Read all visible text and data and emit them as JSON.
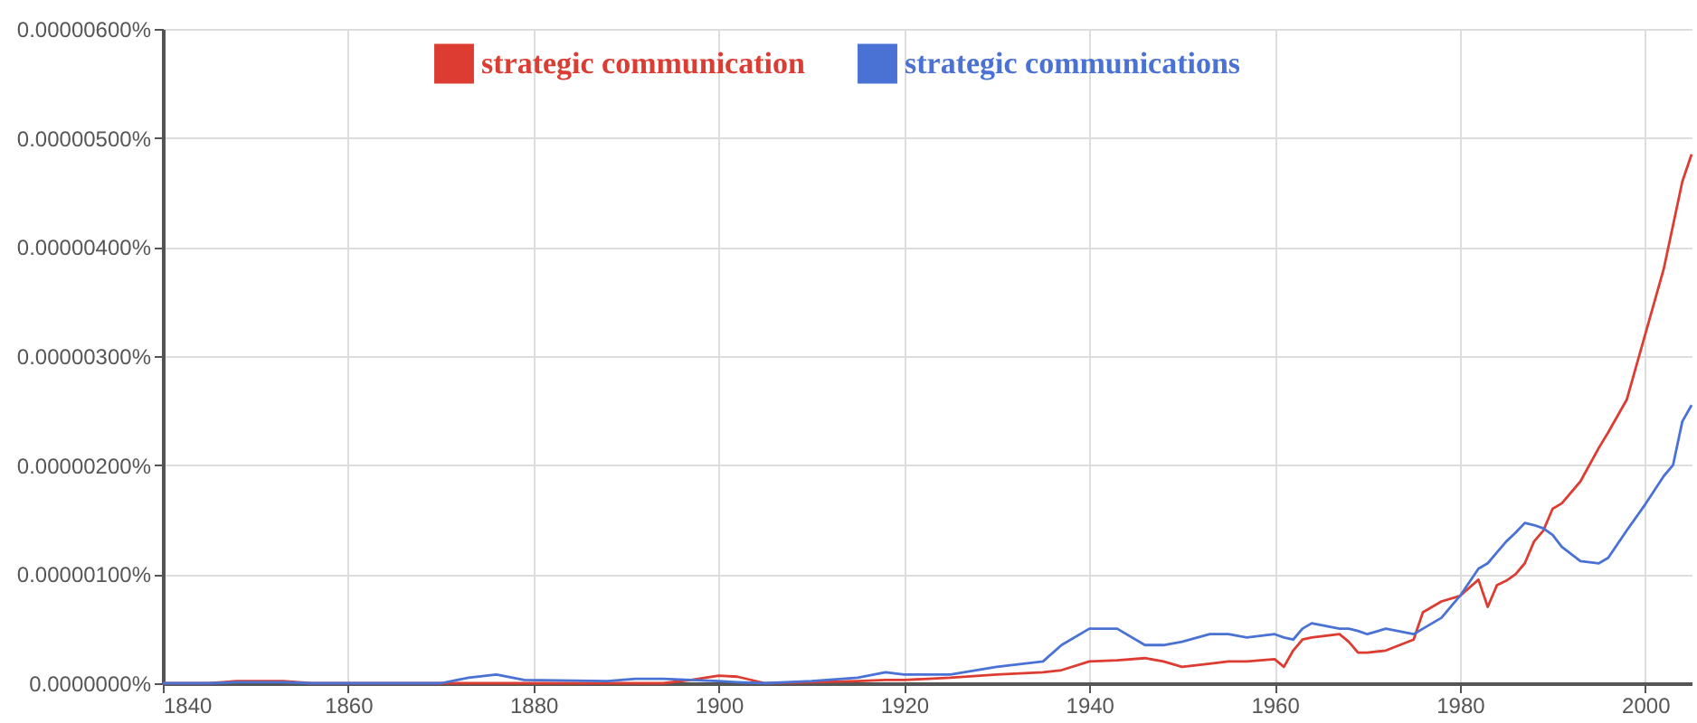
{
  "chart_data": {
    "type": "line",
    "x": [
      1840,
      1845,
      1848,
      1850,
      1853,
      1856,
      1870,
      1873,
      1876,
      1879,
      1888,
      1891,
      1894,
      1897,
      1900,
      1902,
      1905,
      1910,
      1915,
      1918,
      1920,
      1925,
      1930,
      1935,
      1937,
      1940,
      1943,
      1946,
      1948,
      1950,
      1953,
      1955,
      1957,
      1960,
      1961,
      1962,
      1963,
      1964,
      1967,
      1968,
      1969,
      1970,
      1972,
      1975,
      1976,
      1978,
      1980,
      1982,
      1983,
      1984,
      1985,
      1986,
      1987,
      1988,
      1989,
      1990,
      1991,
      1993,
      1995,
      1996,
      1998,
      2000,
      2002,
      2003,
      2004,
      2005
    ],
    "series": [
      {
        "name": "strategic communication",
        "color": "#dc3c32",
        "values": [
          0,
          0,
          2e-08,
          2e-08,
          2e-08,
          0,
          0,
          0,
          0,
          0,
          0,
          0,
          0,
          3e-08,
          7e-08,
          6e-08,
          0,
          1e-08,
          2e-08,
          3e-08,
          3e-08,
          5e-08,
          8e-08,
          1e-07,
          1.2e-07,
          2e-07,
          2.1e-07,
          2.3e-07,
          2e-07,
          1.5e-07,
          1.8e-07,
          2e-07,
          2e-07,
          2.2e-07,
          1.5e-07,
          3e-07,
          4e-07,
          4.2e-07,
          4.5e-07,
          3.8e-07,
          2.8e-07,
          2.8e-07,
          3e-07,
          4e-07,
          6.5e-07,
          7.5e-07,
          8e-07,
          9.5e-07,
          7e-07,
          9e-07,
          9.4e-07,
          1e-06,
          1.1e-06,
          1.3e-06,
          1.4e-06,
          1.6e-06,
          1.65e-06,
          1.85e-06,
          2.16e-06,
          2.3e-06,
          2.6e-06,
          3.2e-06,
          3.8e-06,
          4.2e-06,
          4.6e-06,
          4.85e-06
        ]
      },
      {
        "name": "strategic communications",
        "color": "#4a72d4",
        "values": [
          0,
          0,
          1e-08,
          1e-08,
          1e-08,
          0,
          0,
          5e-08,
          8e-08,
          3e-08,
          2e-08,
          4e-08,
          4e-08,
          3e-08,
          2e-08,
          1e-08,
          0,
          2e-08,
          5e-08,
          1e-07,
          8e-08,
          8e-08,
          1.5e-07,
          2e-07,
          3.5e-07,
          5e-07,
          5e-07,
          3.5e-07,
          3.5e-07,
          3.8e-07,
          4.5e-07,
          4.5e-07,
          4.2e-07,
          4.5e-07,
          4.2e-07,
          4e-07,
          5e-07,
          5.5e-07,
          5e-07,
          5e-07,
          4.8e-07,
          4.5e-07,
          5e-07,
          4.5e-07,
          5e-07,
          6e-07,
          8e-07,
          1.05e-06,
          1.1e-06,
          1.2e-06,
          1.3e-06,
          1.38e-06,
          1.47e-06,
          1.45e-06,
          1.42e-06,
          1.36e-06,
          1.25e-06,
          1.12e-06,
          1.1e-06,
          1.15e-06,
          1.4e-06,
          1.64e-06,
          1.9e-06,
          2e-06,
          2.4e-06,
          2.55e-06
        ]
      }
    ],
    "xlim": [
      1840,
      2005
    ],
    "xticks": [
      1840,
      1860,
      1880,
      1900,
      1920,
      1940,
      1960,
      1980,
      2000
    ],
    "ylim": [
      0,
      6e-06
    ],
    "yticks": [
      {
        "value": 0,
        "label": "0.0000000%"
      },
      {
        "value": 1e-06,
        "label": "0.00000100%"
      },
      {
        "value": 2e-06,
        "label": "0.00000200%"
      },
      {
        "value": 3e-06,
        "label": "0.00000300%"
      },
      {
        "value": 4e-06,
        "label": "0.00000400%"
      },
      {
        "value": 5e-06,
        "label": "0.00000500%"
      },
      {
        "value": 6e-06,
        "label": "0.00000600%"
      }
    ],
    "grid": true,
    "legend": "top left",
    "marker": "none",
    "line_style": "solid"
  }
}
